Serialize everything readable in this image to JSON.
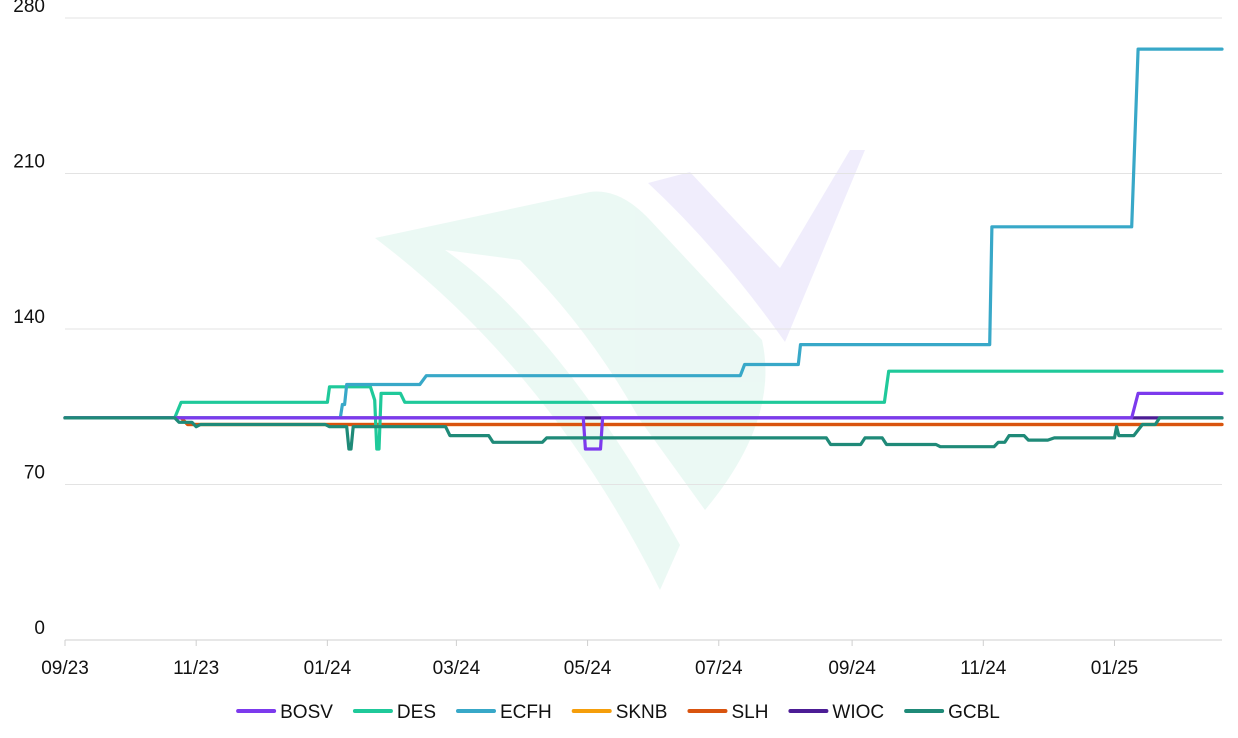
{
  "chart_data": {
    "type": "line",
    "title": "",
    "xlabel": "",
    "ylabel": "",
    "ylim": [
      0,
      280
    ],
    "yticks": [
      0,
      70,
      140,
      210,
      280
    ],
    "xlim": [
      "2023-09-01",
      "2025-02-20"
    ],
    "xticks": [
      {
        "date": "2023-09-01",
        "label": "09/23"
      },
      {
        "date": "2023-11-01",
        "label": "11/23"
      },
      {
        "date": "2024-01-01",
        "label": "01/24"
      },
      {
        "date": "2024-03-01",
        "label": "03/24"
      },
      {
        "date": "2024-05-01",
        "label": "05/24"
      },
      {
        "date": "2024-07-01",
        "label": "07/24"
      },
      {
        "date": "2024-09-01",
        "label": "09/24"
      },
      {
        "date": "2024-11-01",
        "label": "11/24"
      },
      {
        "date": "2025-01-01",
        "label": "01/25"
      }
    ],
    "grid": "horizontal",
    "legend_position": "bottom",
    "watermark": "logo",
    "series": [
      {
        "name": "BOSV",
        "color": "#7c3aed",
        "points": [
          [
            "2023-09-01",
            100
          ],
          [
            "2024-04-29",
            100
          ],
          [
            "2024-04-30",
            86
          ],
          [
            "2024-05-07",
            86
          ],
          [
            "2024-05-08",
            100
          ],
          [
            "2025-01-09",
            100
          ],
          [
            "2025-01-12",
            111
          ],
          [
            "2025-02-20",
            111
          ]
        ]
      },
      {
        "name": "DES",
        "color": "#1fc99a",
        "points": [
          [
            "2023-09-01",
            100
          ],
          [
            "2023-10-22",
            100
          ],
          [
            "2023-10-25",
            107
          ],
          [
            "2024-01-01",
            107
          ],
          [
            "2024-01-02",
            114
          ],
          [
            "2024-01-21",
            114
          ],
          [
            "2024-01-23",
            108
          ],
          [
            "2024-01-24",
            86
          ],
          [
            "2024-01-25",
            86
          ],
          [
            "2024-01-26",
            111
          ],
          [
            "2024-02-04",
            111
          ],
          [
            "2024-02-06",
            107
          ],
          [
            "2024-09-16",
            107
          ],
          [
            "2024-09-18",
            121
          ],
          [
            "2025-02-20",
            121
          ]
        ]
      },
      {
        "name": "ECFH",
        "color": "#38a8c8",
        "points": [
          [
            "2023-09-01",
            100
          ],
          [
            "2024-01-07",
            100
          ],
          [
            "2024-01-08",
            106
          ],
          [
            "2024-01-09",
            106
          ],
          [
            "2024-01-10",
            115
          ],
          [
            "2024-02-13",
            115
          ],
          [
            "2024-02-16",
            119
          ],
          [
            "2024-07-11",
            119
          ],
          [
            "2024-07-13",
            124
          ],
          [
            "2024-08-07",
            124
          ],
          [
            "2024-08-08",
            133
          ],
          [
            "2024-11-04",
            133
          ],
          [
            "2024-11-05",
            186
          ],
          [
            "2025-01-09",
            186
          ],
          [
            "2025-01-12",
            266
          ],
          [
            "2025-02-20",
            266
          ]
        ]
      },
      {
        "name": "SKNB",
        "color": "#f59e0b",
        "points": [
          [
            "2023-09-01",
            100
          ],
          [
            "2023-10-25",
            100
          ],
          [
            "2023-10-28",
            97
          ],
          [
            "2025-02-20",
            97
          ]
        ]
      },
      {
        "name": "SLH",
        "color": "#d9540f",
        "points": [
          [
            "2023-09-01",
            100
          ],
          [
            "2023-10-25",
            100
          ],
          [
            "2023-10-28",
            97
          ],
          [
            "2025-02-20",
            97
          ]
        ]
      },
      {
        "name": "WIOC",
        "color": "#4c1d95",
        "points": [
          [
            "2023-09-01",
            100
          ],
          [
            "2025-02-20",
            100
          ]
        ]
      },
      {
        "name": "GCBL",
        "color": "#1f8a78",
        "points": [
          [
            "2023-09-01",
            100
          ],
          [
            "2023-10-22",
            100
          ],
          [
            "2023-10-24",
            98
          ],
          [
            "2023-10-30",
            98
          ],
          [
            "2023-11-01",
            96
          ],
          [
            "2023-11-03",
            97
          ],
          [
            "2023-12-31",
            97
          ],
          [
            "2024-01-02",
            96
          ],
          [
            "2024-01-10",
            96
          ],
          [
            "2024-01-11",
            86
          ],
          [
            "2024-01-12",
            86
          ],
          [
            "2024-01-13",
            96
          ],
          [
            "2024-02-25",
            96
          ],
          [
            "2024-02-27",
            92
          ],
          [
            "2024-03-16",
            92
          ],
          [
            "2024-03-18",
            89
          ],
          [
            "2024-04-10",
            89
          ],
          [
            "2024-04-12",
            91
          ],
          [
            "2024-08-20",
            91
          ],
          [
            "2024-08-22",
            88
          ],
          [
            "2024-09-05",
            88
          ],
          [
            "2024-09-07",
            91
          ],
          [
            "2024-09-15",
            91
          ],
          [
            "2024-09-17",
            88
          ],
          [
            "2024-10-10",
            88
          ],
          [
            "2024-10-12",
            87
          ],
          [
            "2024-11-06",
            87
          ],
          [
            "2024-11-08",
            89
          ],
          [
            "2024-11-11",
            89
          ],
          [
            "2024-11-13",
            92
          ],
          [
            "2024-11-20",
            92
          ],
          [
            "2024-11-22",
            90
          ],
          [
            "2024-12-01",
            90
          ],
          [
            "2024-12-04",
            91
          ],
          [
            "2025-01-01",
            91
          ],
          [
            "2025-01-02",
            96
          ],
          [
            "2025-01-03",
            92
          ],
          [
            "2025-01-10",
            92
          ],
          [
            "2025-01-14",
            97
          ],
          [
            "2025-01-20",
            97
          ],
          [
            "2025-01-22",
            100
          ],
          [
            "2025-02-20",
            100
          ]
        ]
      }
    ]
  }
}
